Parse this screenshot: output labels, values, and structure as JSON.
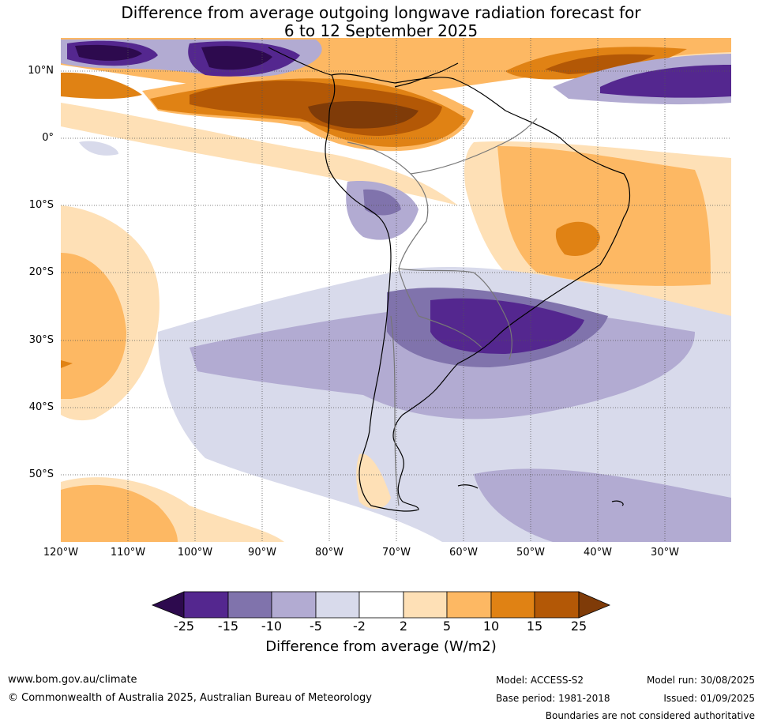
{
  "title": {
    "line1": "Difference from average outgoing longwave radiation forecast for",
    "line2": "6 to 12 September 2025"
  },
  "map": {
    "region": "South America",
    "latitude_labels": [
      "10°N",
      "0°",
      "10°S",
      "20°S",
      "30°S",
      "40°S",
      "50°S"
    ],
    "longitude_labels": [
      "120°W",
      "110°W",
      "100°W",
      "90°W",
      "80°W",
      "70°W",
      "60°W",
      "50°W",
      "40°W",
      "30°W"
    ],
    "gridlines": true
  },
  "colorbar": {
    "ticks": [
      "-25",
      "-15",
      "-10",
      "-5",
      "-2",
      "2",
      "5",
      "10",
      "15",
      "25"
    ],
    "label": "Difference from average (W/m2)",
    "colors": {
      "below_-25": "#2d0a4e",
      "-25_-15": "#54278f",
      "-15_-10": "#8073ac",
      "-10_-5": "#b2abd2",
      "-5_-2": "#d8daeb",
      "-2_2": "#ffffff",
      "2_5": "#fee0b6",
      "5_10": "#fdb863",
      "10_15": "#e08214",
      "15_25": "#b35806",
      "above_25": "#7f3b08"
    }
  },
  "footer": {
    "website": "www.bom.gov.au/climate",
    "copyright": "© Commonwealth of Australia 2025, Australian Bureau of Meteorology",
    "model": "Model: ACCESS-S2",
    "base_period": "Base period: 1981-2018",
    "model_run": "Model run: 30/08/2025",
    "issued": "Issued: 01/09/2025",
    "disclaimer": "Boundaries are not considered authoritative"
  }
}
